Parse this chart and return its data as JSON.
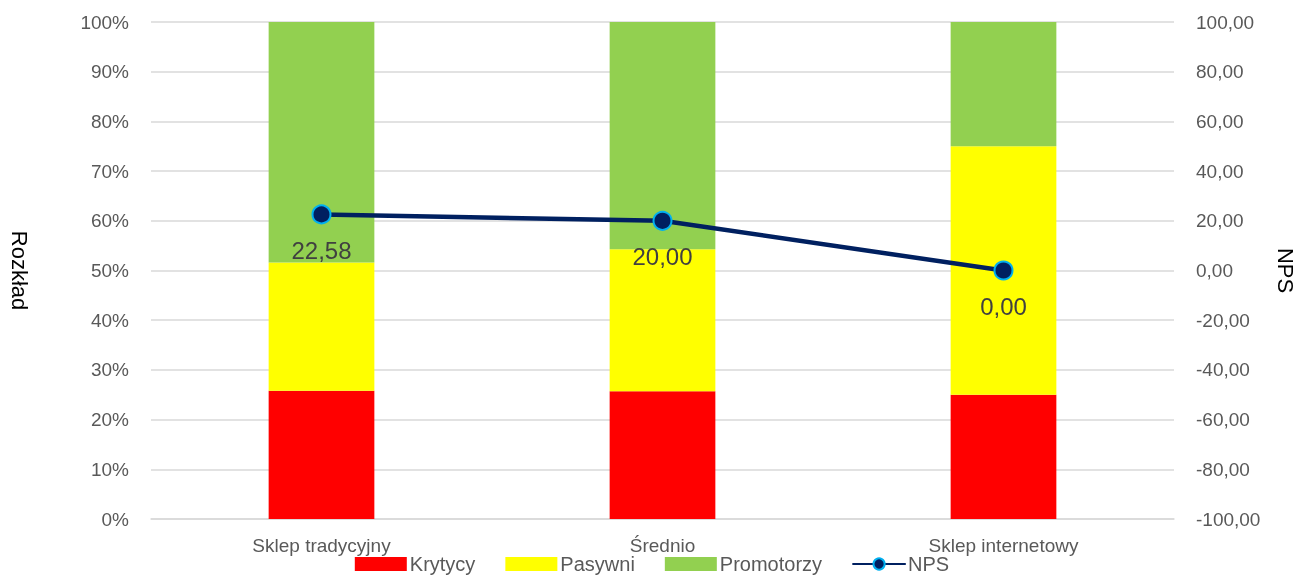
{
  "chart_data": {
    "type": "bar",
    "stacked": true,
    "categories": [
      "Sklep tradycyjny",
      "Średnio",
      "Sklep internetowy"
    ],
    "series": [
      {
        "name": "Krytycy",
        "color": "#ff0000",
        "values": [
          25.8,
          25.7,
          25
        ]
      },
      {
        "name": "Pasywni",
        "color": "#ffff00",
        "values": [
          25.8,
          28.6,
          50
        ]
      },
      {
        "name": "Promotorzy",
        "color": "#92d050",
        "values": [
          48.4,
          45.7,
          25
        ]
      },
      {
        "name": "NPS",
        "type": "line",
        "axis": "y2",
        "color": "#002060",
        "marker": "circle",
        "values": [
          22.58,
          20,
          0
        ],
        "value_labels": [
          "22,58",
          "20,00",
          "0,00"
        ]
      }
    ],
    "ylabel": "Rozkład",
    "y2label": "NPS",
    "ylim": [
      0,
      100
    ],
    "yticks": [
      {
        "value": 0,
        "label": "0%"
      },
      {
        "value": 10,
        "label": "10%"
      },
      {
        "value": 20,
        "label": "20%"
      },
      {
        "value": 30,
        "label": "30%"
      },
      {
        "value": 40,
        "label": "40%"
      },
      {
        "value": 50,
        "label": "50%"
      },
      {
        "value": 60,
        "label": "60%"
      },
      {
        "value": 70,
        "label": "70%"
      },
      {
        "value": 80,
        "label": "80%"
      },
      {
        "value": 90,
        "label": "90%"
      },
      {
        "value": 100,
        "label": "100%"
      }
    ],
    "y2lim": [
      -100,
      100
    ],
    "y2ticks": [
      {
        "value": -100,
        "label": "-100,00"
      },
      {
        "value": -80,
        "label": "-80,00"
      },
      {
        "value": -60,
        "label": "-60,00"
      },
      {
        "value": -40,
        "label": "-40,00"
      },
      {
        "value": -20,
        "label": "-20,00"
      },
      {
        "value": 0,
        "label": "0,00"
      },
      {
        "value": 20,
        "label": "20,00"
      },
      {
        "value": 40,
        "label": "40,00"
      },
      {
        "value": 60,
        "label": "60,00"
      },
      {
        "value": 80,
        "label": "80,00"
      },
      {
        "value": 100,
        "label": "100,00"
      }
    ],
    "grid": "y",
    "legend": "bottom"
  }
}
